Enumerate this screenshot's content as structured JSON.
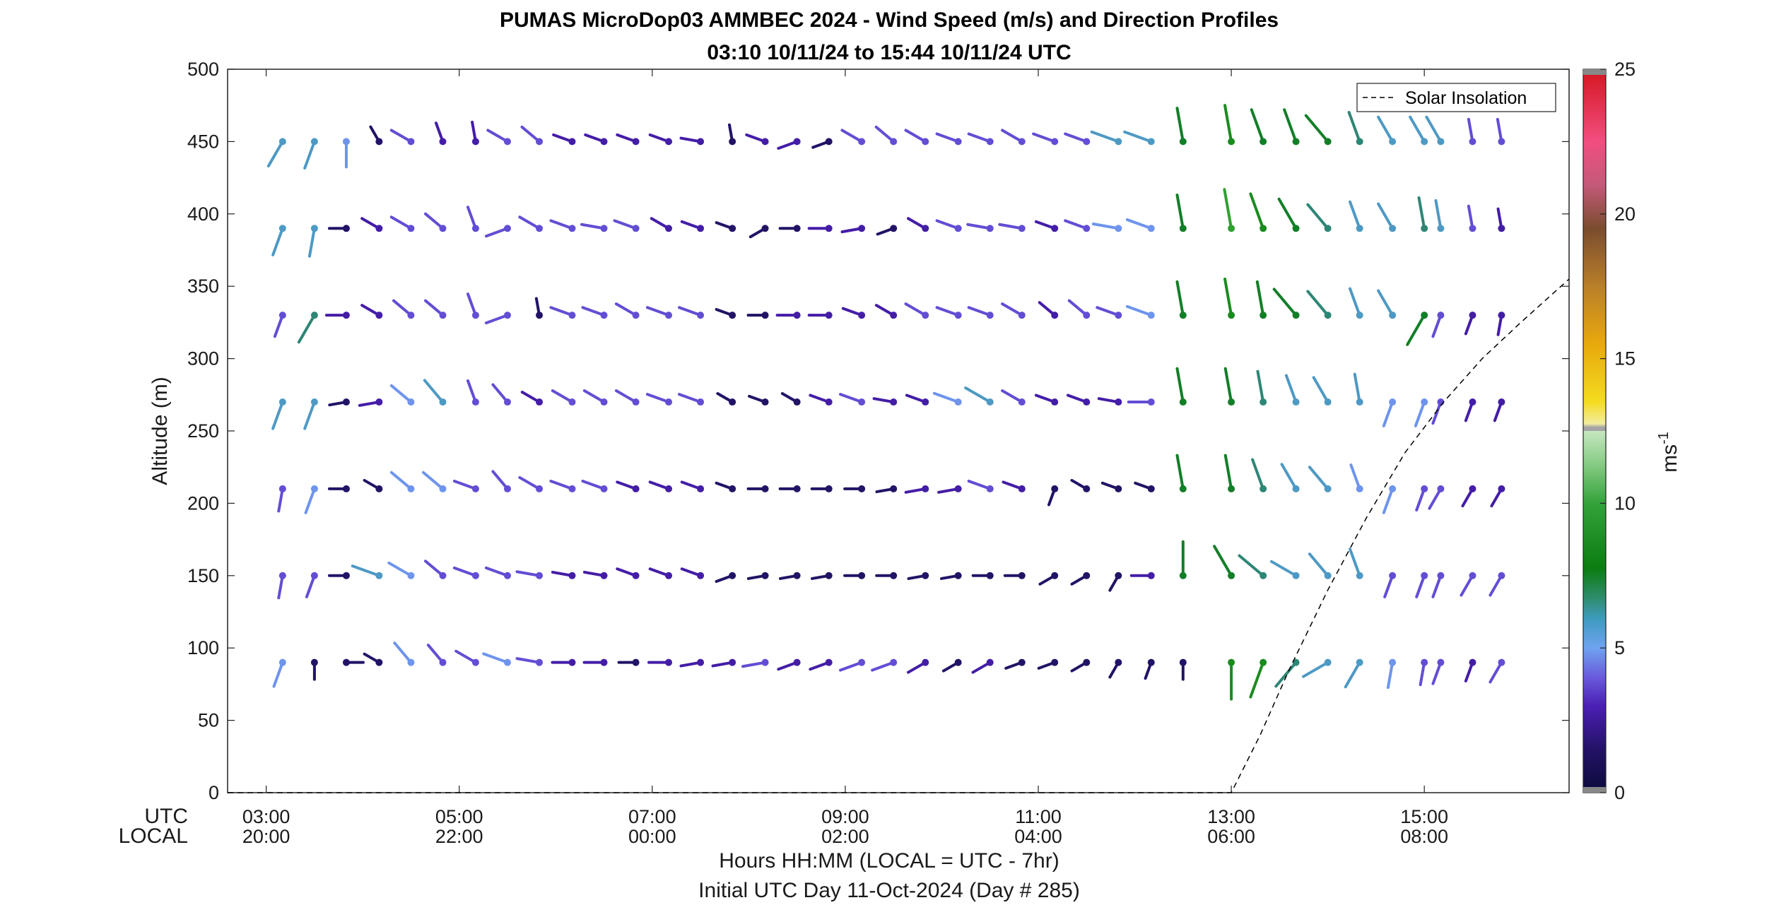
{
  "chart_data": {
    "type": "wind-barb-profile",
    "title": "PUMAS MicroDop03 AMMBEC 2024 - Wind Speed (m/s) and Direction Profiles",
    "subtitle": "03:10 10/11/24 to 15:44 10/11/24  UTC",
    "ylabel": "Altitude (m)",
    "xlabel": "Hours HH:MM  (LOCAL = UTC - 7hr)",
    "footer": "Initial UTC Day 11-Oct-2024 (Day # 285)",
    "utc_row_label": "UTC",
    "local_row_label": "LOCAL",
    "xlim_hours": [
      2.6,
      16.5
    ],
    "ylim": [
      0,
      500
    ],
    "y_ticks": [
      "0",
      "50",
      "100",
      "150",
      "200",
      "250",
      "300",
      "350",
      "400",
      "450",
      "500"
    ],
    "x_ticks": [
      {
        "hour": 3,
        "utc": "03:00",
        "local": "20:00"
      },
      {
        "hour": 5,
        "utc": "05:00",
        "local": "22:00"
      },
      {
        "hour": 7,
        "utc": "07:00",
        "local": "00:00"
      },
      {
        "hour": 9,
        "utc": "09:00",
        "local": "02:00"
      },
      {
        "hour": 11,
        "utc": "11:00",
        "local": "04:00"
      },
      {
        "hour": 13,
        "utc": "13:00",
        "local": "06:00"
      },
      {
        "hour": 15,
        "utc": "15:00",
        "local": "08:00"
      }
    ],
    "colorbar": {
      "label": "ms",
      "label_exponent": "-1",
      "range": [
        0,
        25
      ],
      "ticks": [
        "0",
        "5",
        "10",
        "15",
        "20",
        "25"
      ]
    },
    "legend": {
      "entry": "Solar Insolation",
      "placement": "top-right"
    },
    "solar_insolation": {
      "x": [
        2.6,
        13.0,
        13.3,
        13.6,
        14.0,
        14.4,
        14.8,
        15.2,
        15.6,
        16.0,
        16.5
      ],
      "y": [
        0,
        0,
        40,
        85,
        140,
        190,
        235,
        270,
        300,
        325,
        355
      ]
    },
    "time_hours": [
      3.17,
      3.5,
      3.83,
      4.17,
      4.5,
      4.83,
      5.17,
      5.5,
      5.83,
      6.17,
      6.5,
      6.83,
      7.17,
      7.5,
      7.83,
      8.17,
      8.5,
      8.83,
      9.17,
      9.5,
      9.83,
      10.17,
      10.5,
      10.83,
      11.17,
      11.5,
      11.83,
      12.17,
      12.5,
      13.0,
      13.33,
      13.67,
      14.0,
      14.33,
      14.67,
      15.0,
      15.17,
      15.5,
      15.8
    ],
    "altitudes": [
      90,
      150,
      210,
      270,
      330,
      390,
      450
    ],
    "speed_ms": [
      [
        4,
        1,
        1,
        1,
        4,
        3,
        3,
        4,
        3,
        2,
        2,
        1,
        2,
        2,
        2,
        3,
        2,
        2,
        3,
        3,
        2,
        1,
        2,
        1,
        1,
        1,
        1,
        1,
        1,
        8,
        8,
        6,
        5,
        5,
        4,
        3,
        3,
        2,
        3
      ],
      [
        3,
        3,
        1,
        5,
        4,
        3,
        3,
        3,
        3,
        2,
        2,
        2,
        2,
        2,
        1,
        1,
        1,
        1,
        1,
        1,
        1,
        1,
        1,
        1,
        1,
        1,
        1,
        2,
        7,
        7,
        6,
        5,
        5,
        5,
        3,
        3,
        3,
        3,
        3
      ],
      [
        3,
        4,
        1,
        1,
        4,
        4,
        3,
        3,
        3,
        3,
        3,
        2,
        2,
        2,
        1,
        1,
        1,
        1,
        1,
        1,
        2,
        2,
        3,
        2,
        1,
        1,
        1,
        1,
        7,
        7,
        6,
        5,
        5,
        4,
        4,
        3,
        3,
        2,
        2
      ],
      [
        5,
        5,
        1,
        2,
        4,
        5,
        3,
        3,
        2,
        3,
        3,
        3,
        3,
        3,
        1,
        1,
        1,
        2,
        3,
        2,
        2,
        4,
        5,
        3,
        2,
        2,
        2,
        3,
        7,
        7,
        6,
        5,
        5,
        5,
        4,
        4,
        3,
        2,
        2
      ],
      [
        3,
        6,
        2,
        2,
        3,
        3,
        3,
        3,
        1,
        3,
        3,
        3,
        3,
        3,
        1,
        1,
        2,
        2,
        2,
        2,
        3,
        3,
        3,
        3,
        2,
        3,
        3,
        4,
        7,
        8,
        7,
        7,
        6,
        5,
        5,
        7,
        3,
        2,
        2
      ],
      [
        5,
        5,
        1,
        2,
        3,
        3,
        3,
        3,
        3,
        3,
        3,
        3,
        2,
        2,
        1,
        1,
        1,
        2,
        2,
        1,
        2,
        3,
        3,
        3,
        2,
        3,
        4,
        4,
        7,
        9,
        8,
        7,
        6,
        5,
        5,
        6,
        5,
        3,
        2
      ],
      [
        5,
        5,
        4,
        1,
        3,
        2,
        2,
        3,
        3,
        2,
        2,
        2,
        2,
        2,
        1,
        2,
        2,
        1,
        3,
        3,
        3,
        3,
        3,
        3,
        3,
        3,
        5,
        5,
        7,
        8,
        7,
        7,
        7,
        6,
        5,
        5,
        5,
        3,
        3
      ]
    ],
    "direction_deg": [
      [
        200,
        180,
        90,
        300,
        320,
        320,
        300,
        290,
        280,
        270,
        270,
        270,
        270,
        260,
        260,
        260,
        250,
        250,
        250,
        250,
        240,
        240,
        240,
        250,
        250,
        240,
        210,
        200,
        180,
        180,
        200,
        220,
        240,
        210,
        190,
        190,
        200,
        200,
        210
      ],
      [
        190,
        200,
        270,
        290,
        300,
        310,
        290,
        290,
        280,
        280,
        280,
        290,
        290,
        290,
        250,
        260,
        260,
        260,
        270,
        270,
        260,
        260,
        270,
        270,
        240,
        240,
        210,
        270,
        0,
        330,
        310,
        300,
        320,
        340,
        200,
        200,
        200,
        210,
        210
      ],
      [
        190,
        200,
        270,
        300,
        310,
        310,
        290,
        320,
        300,
        290,
        290,
        290,
        290,
        290,
        290,
        270,
        270,
        270,
        270,
        260,
        260,
        260,
        290,
        290,
        200,
        300,
        290,
        290,
        350,
        350,
        340,
        330,
        320,
        340,
        200,
        200,
        210,
        210,
        210
      ],
      [
        200,
        200,
        260,
        260,
        310,
        320,
        340,
        320,
        300,
        300,
        300,
        300,
        290,
        290,
        300,
        290,
        300,
        290,
        290,
        280,
        290,
        290,
        300,
        300,
        290,
        290,
        280,
        270,
        350,
        350,
        350,
        340,
        330,
        350,
        200,
        200,
        200,
        200,
        200
      ],
      [
        200,
        210,
        270,
        300,
        310,
        310,
        340,
        250,
        350,
        290,
        290,
        300,
        290,
        290,
        290,
        270,
        270,
        270,
        290,
        300,
        300,
        290,
        290,
        300,
        310,
        310,
        290,
        290,
        350,
        350,
        350,
        320,
        320,
        340,
        330,
        210,
        200,
        200,
        190
      ],
      [
        200,
        190,
        270,
        300,
        300,
        310,
        340,
        250,
        300,
        290,
        280,
        290,
        300,
        290,
        290,
        240,
        270,
        270,
        260,
        250,
        300,
        290,
        280,
        280,
        290,
        290,
        280,
        290,
        350,
        350,
        340,
        330,
        320,
        340,
        330,
        350,
        350,
        350,
        350
      ],
      [
        210,
        200,
        180,
        330,
        300,
        340,
        350,
        300,
        310,
        290,
        290,
        290,
        290,
        280,
        350,
        290,
        250,
        250,
        300,
        310,
        300,
        290,
        290,
        300,
        290,
        290,
        290,
        290,
        350,
        350,
        340,
        340,
        320,
        340,
        330,
        330,
        330,
        350,
        350
      ]
    ]
  }
}
